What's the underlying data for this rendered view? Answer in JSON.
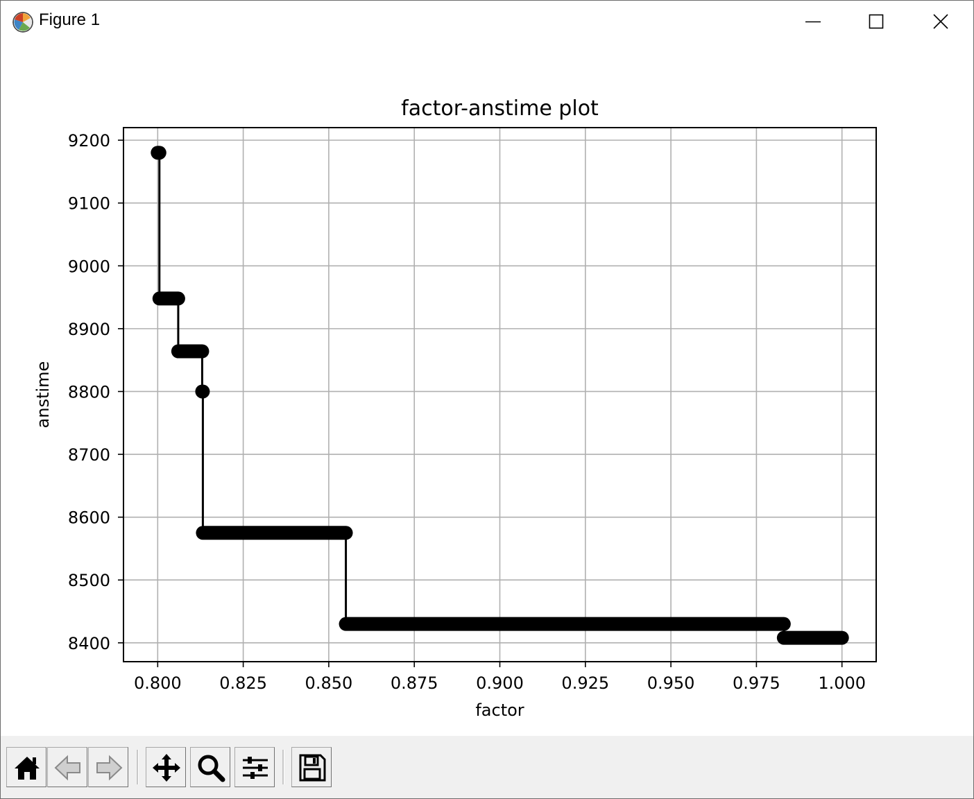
{
  "window": {
    "title": "Figure 1",
    "app_icon": "matplotlib-icon",
    "controls": [
      "minimize-icon",
      "maximize-icon",
      "close-icon"
    ]
  },
  "toolbar": {
    "buttons": [
      {
        "name": "home-button",
        "icon": "home-icon"
      },
      {
        "name": "back-button",
        "icon": "arrow-left-icon"
      },
      {
        "name": "forward-button",
        "icon": "arrow-right-icon"
      },
      {
        "name": "pan-button",
        "icon": "move-icon"
      },
      {
        "name": "zoom-button",
        "icon": "magnifier-icon"
      },
      {
        "name": "configure-subplots-button",
        "icon": "sliders-icon"
      },
      {
        "name": "save-button",
        "icon": "floppy-disk-icon"
      }
    ]
  },
  "colors": {
    "line": "#000000",
    "grid": "#b0b0b0",
    "toolbar_bg": "#f0f0f0"
  },
  "chart_data": {
    "type": "line",
    "title": "factor-anstime plot",
    "xlabel": "factor",
    "ylabel": "anstime",
    "xlim": [
      0.79,
      1.01
    ],
    "ylim": [
      8370,
      9220
    ],
    "grid": true,
    "marker": "o",
    "x_ticks": [
      0.8,
      0.825,
      0.85,
      0.875,
      0.9,
      0.925,
      0.95,
      0.975,
      1.0
    ],
    "x_tick_labels": [
      "0.800",
      "0.825",
      "0.850",
      "0.875",
      "0.900",
      "0.925",
      "0.950",
      "0.975",
      "1.000"
    ],
    "y_ticks": [
      8400,
      8500,
      8600,
      8700,
      8800,
      8900,
      9000,
      9100,
      9200
    ],
    "y_tick_labels": [
      "8400",
      "8500",
      "8600",
      "8700",
      "8800",
      "8900",
      "9000",
      "9100",
      "9200"
    ],
    "series": [
      {
        "segments": [
          {
            "x_start": 0.8,
            "x_end": 0.8005,
            "y": 9180
          },
          {
            "x_start": 0.8005,
            "x_end": 0.806,
            "y": 8948
          },
          {
            "x_start": 0.806,
            "x_end": 0.813,
            "y": 8864
          },
          {
            "x_start": 0.813,
            "x_end": 0.8132,
            "y": 8800
          },
          {
            "x_start": 0.8132,
            "x_end": 0.855,
            "y": 8575
          },
          {
            "x_start": 0.855,
            "x_end": 0.983,
            "y": 8430
          },
          {
            "x_start": 0.983,
            "x_end": 1.0,
            "y": 8408
          }
        ]
      }
    ]
  }
}
